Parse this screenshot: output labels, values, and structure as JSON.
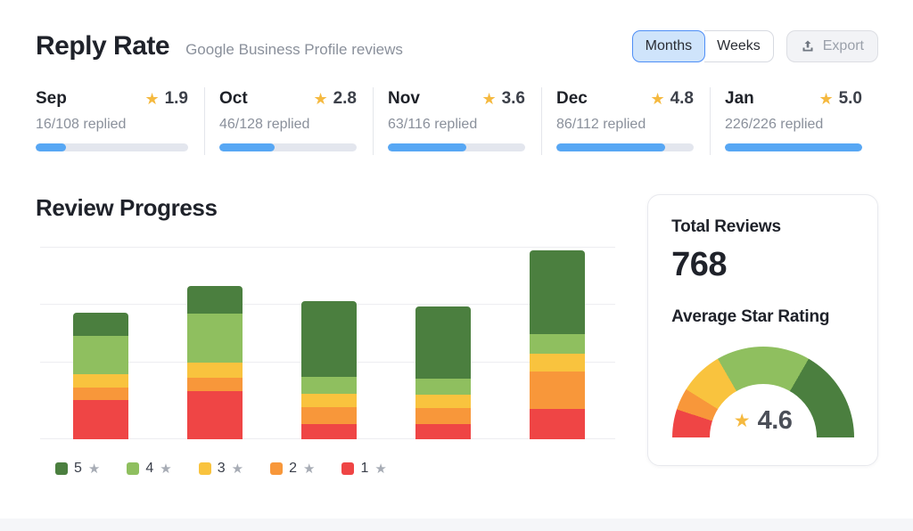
{
  "header": {
    "title": "Reply Rate",
    "subtitle": "Google Business Profile reviews",
    "view_toggle": {
      "options": [
        "Months",
        "Weeks"
      ],
      "active": "Months"
    },
    "export_label": "Export"
  },
  "months": [
    {
      "name": "Sep",
      "rating": "1.9",
      "replied": "16/108 replied",
      "progress_pct": 20
    },
    {
      "name": "Oct",
      "rating": "2.8",
      "replied": "46/128 replied",
      "progress_pct": 40
    },
    {
      "name": "Nov",
      "rating": "3.6",
      "replied": "63/116 replied",
      "progress_pct": 57
    },
    {
      "name": "Dec",
      "rating": "4.8",
      "replied": "86/112 replied",
      "progress_pct": 79
    },
    {
      "name": "Jan",
      "rating": "5.0",
      "replied": "226/226 replied",
      "progress_pct": 100
    }
  ],
  "review_progress": {
    "title": "Review Progress",
    "legend": [
      {
        "label": "5",
        "color": "#4b7f3f"
      },
      {
        "label": "4",
        "color": "#8fbf5f"
      },
      {
        "label": "3",
        "color": "#f9c33e"
      },
      {
        "label": "2",
        "color": "#f8973a"
      },
      {
        "label": "1",
        "color": "#ef4545"
      }
    ]
  },
  "chart_data": [
    {
      "type": "bar",
      "stacked": true,
      "title": "Review Progress",
      "categories": [
        "Sep",
        "Oct",
        "Nov",
        "Dec",
        "Jan"
      ],
      "series": [
        {
          "name": "1 star",
          "color": "#ef4545",
          "values": [
            44,
            54,
            17,
            17,
            34
          ]
        },
        {
          "name": "2 star",
          "color": "#f8973a",
          "values": [
            14,
            15,
            19,
            18,
            42
          ]
        },
        {
          "name": "3 star",
          "color": "#f9c33e",
          "values": [
            15,
            17,
            15,
            15,
            20
          ]
        },
        {
          "name": "4 star",
          "color": "#8fbf5f",
          "values": [
            43,
            55,
            19,
            18,
            22
          ]
        },
        {
          "name": "5 star",
          "color": "#4b7f3f",
          "values": [
            26,
            31,
            85,
            81,
            94
          ]
        }
      ],
      "totals": [
        142,
        172,
        155,
        149,
        212
      ],
      "ylim": [
        0,
        220
      ],
      "value_units": "relative height units (no axis tick labels shown in UI)",
      "grid": true,
      "legend_position": "bottom"
    },
    {
      "type": "gauge",
      "title": "Average Star Rating",
      "value": 4.6,
      "min": 0,
      "max": 5,
      "segments": [
        {
          "label": "1 star",
          "color": "#ef4545",
          "start_deg": 0,
          "end_deg": 18
        },
        {
          "label": "2 star",
          "color": "#f8973a",
          "start_deg": 18,
          "end_deg": 32
        },
        {
          "label": "3 star",
          "color": "#f9c33e",
          "start_deg": 32,
          "end_deg": 60
        },
        {
          "label": "4 star",
          "color": "#8fbf5f",
          "start_deg": 60,
          "end_deg": 120
        },
        {
          "label": "5 star",
          "color": "#4b7f3f",
          "start_deg": 120,
          "end_deg": 180
        }
      ]
    }
  ],
  "summary": {
    "total_reviews_label": "Total Reviews",
    "total_reviews_value": "768",
    "avg_rating_label": "Average Star Rating",
    "avg_rating_value": "4.6"
  },
  "colors": {
    "accent_blue": "#57a7f4",
    "star_gold": "#f5b93f",
    "progress_track": "#e3e6ee",
    "star_5": "#4b7f3f",
    "star_4": "#8fbf5f",
    "star_3": "#f9c33e",
    "star_2": "#f8973a",
    "star_1": "#ef4545"
  }
}
